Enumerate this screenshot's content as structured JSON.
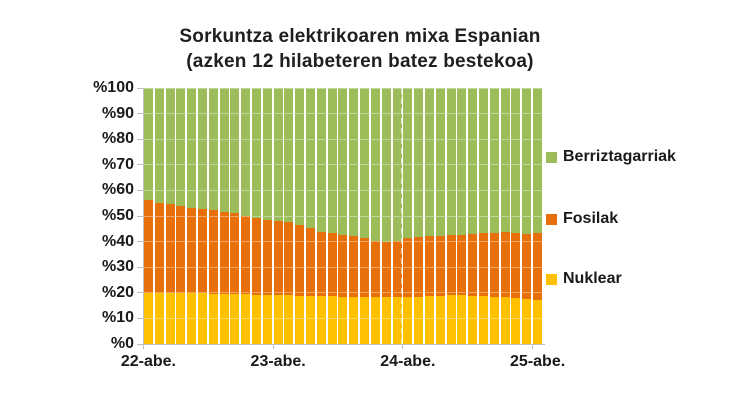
{
  "title": {
    "line1": "Sorkuntza elektrikoaren mixa Espanian",
    "line2": "(azken 12 hilabeteren batez bestekoa)"
  },
  "colors": {
    "renewables": "#9cbc59",
    "fossil": "#e8700a",
    "nuclear": "#ffc000",
    "gridline": "#d9d9d9",
    "axis": "#bfbfbf",
    "text": "#1a1a1a"
  },
  "legend": [
    {
      "label": "Berriztagarriak",
      "color": "#9cbc59"
    },
    {
      "label": "Fosilak",
      "color": "#e8700a"
    },
    {
      "label": "Nuklear",
      "color": "#ffc000"
    }
  ],
  "chart_data": {
    "type": "bar",
    "stacked": true,
    "percent": true,
    "title": "Sorkuntza elektrikoaren mixa Espanian (azken 12 hilabeteren batez bestekoa)",
    "n_points": 37,
    "x_tick_labels": [
      "22-abe.",
      "23-abe.",
      "24-abe.",
      "25-abe."
    ],
    "x_ticks_every": 12,
    "y_tick_labels": [
      "%100",
      "%90",
      "%80",
      "%70",
      "%60",
      "%50",
      "%40",
      "%30",
      "%20",
      "%10",
      "%0"
    ],
    "ylim": [
      0,
      100
    ],
    "gridlines": "horizontal",
    "legend_position": "right",
    "series": [
      {
        "name": "Nuklear",
        "color": "#ffc000",
        "values": [
          20.0,
          20.0,
          19.9,
          19.9,
          19.8,
          19.8,
          19.7,
          19.6,
          19.5,
          19.4,
          19.3,
          19.2,
          19.1,
          19.0,
          18.9,
          18.8,
          18.7,
          18.6,
          18.5,
          18.5,
          18.4,
          18.4,
          18.4,
          18.4,
          18.4,
          18.5,
          18.6,
          18.8,
          19.0,
          19.1,
          18.9,
          18.6,
          18.4,
          18.2,
          18.0,
          17.6,
          17.3
        ]
      },
      {
        "name": "Fosilak",
        "color": "#e8700a",
        "values": [
          36.2,
          34.9,
          34.8,
          34.0,
          33.5,
          33.1,
          32.6,
          32.0,
          31.5,
          30.6,
          29.9,
          29.4,
          28.9,
          28.5,
          27.6,
          26.5,
          25.2,
          24.8,
          24.1,
          23.7,
          23.0,
          22.0,
          21.4,
          21.8,
          23.0,
          23.3,
          23.4,
          23.4,
          23.6,
          23.5,
          24.1,
          24.8,
          25.0,
          25.6,
          25.4,
          25.4,
          26.1
        ]
      },
      {
        "name": "Berriztagarriak",
        "color": "#9cbc59",
        "values": [
          43.8,
          45.1,
          45.3,
          46.1,
          46.7,
          47.1,
          47.7,
          48.4,
          49.0,
          50.0,
          50.8,
          51.4,
          52.0,
          52.5,
          53.5,
          54.7,
          56.1,
          56.6,
          57.4,
          57.8,
          58.6,
          59.6,
          60.2,
          59.8,
          58.6,
          58.2,
          58.0,
          57.8,
          57.4,
          57.4,
          57.0,
          56.6,
          56.6,
          56.2,
          56.6,
          57.0,
          56.6
        ]
      }
    ]
  }
}
